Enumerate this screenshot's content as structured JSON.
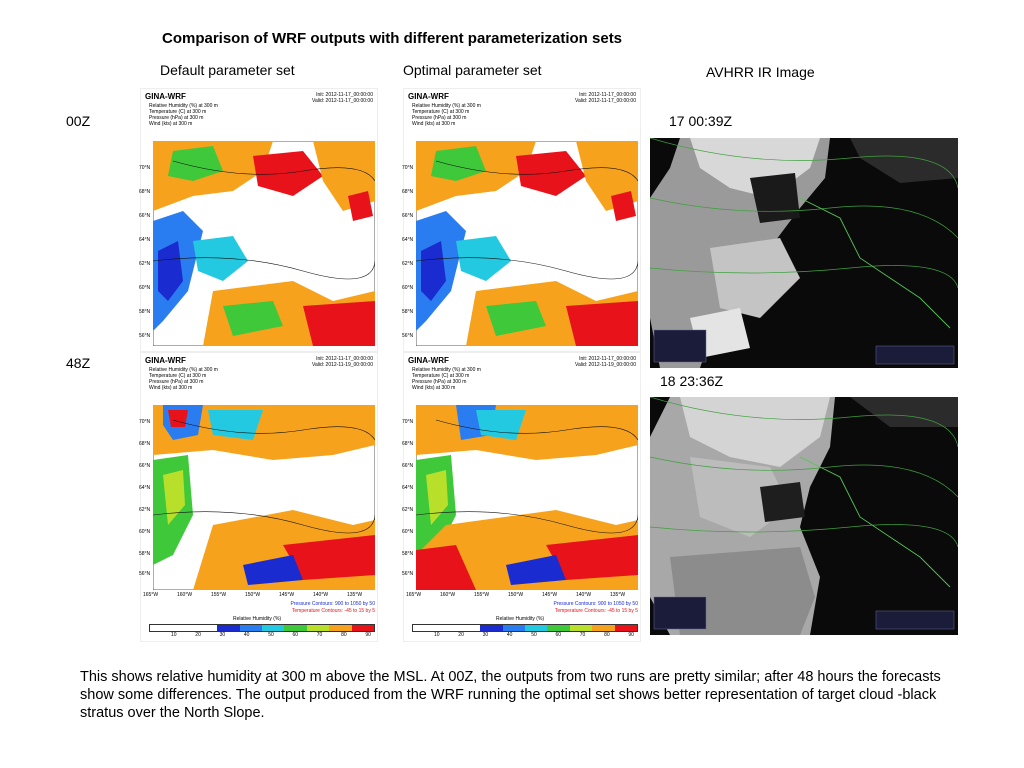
{
  "title": "Comparison of WRF outputs with different parameterization sets",
  "columns": {
    "default": "Default parameter set",
    "optimal": "Optimal parameter set",
    "avhrr": "AVHRR IR Image"
  },
  "rows": {
    "r1": "00Z",
    "r2": "48Z"
  },
  "times": {
    "t1": "17 00:39Z",
    "t2": "18 23:36Z"
  },
  "panel_common": {
    "brand": "GINA-WRF",
    "vars": [
      "Relative Humidity (%) at 300 m",
      "Temperature (C) at 300 m",
      "Pressure (hPa) at 300 m",
      "Wind (kts) at 300 m"
    ],
    "lat_labels": [
      "70°N",
      "68°N",
      "66°N",
      "64°N",
      "62°N",
      "60°N",
      "58°N",
      "56°N"
    ],
    "lon_labels": [
      "165°W",
      "160°W",
      "155°W",
      "150°W",
      "145°W",
      "140°W",
      "135°W"
    ],
    "pressure_contours": "Pressure Contours: 900 to 1050 by 50",
    "temperature_contours": "Temperature Contours: -45 to 15 by 5",
    "cbar_title": "Relative Humidity (%)",
    "cbar_ticks": [
      "10",
      "20",
      "30",
      "40",
      "50",
      "60",
      "70",
      "80",
      "90"
    ],
    "cbar_colors": [
      "#ffffff",
      "#ffffff",
      "#ffffff",
      "#1a2ccf",
      "#2a7df0",
      "#22c9e0",
      "#3ec83a",
      "#b8e02a",
      "#f7a21c",
      "#e8121a"
    ]
  },
  "panels": {
    "p00_def": {
      "init": "Init: 2012-11-17_00:00:00",
      "valid": "Valid: 2012-11-17_00:00:00"
    },
    "p00_opt": {
      "init": "Init: 2012-11-17_00:00:00",
      "valid": "Valid: 2012-11-17_00:00:00"
    },
    "p48_def": {
      "init": "Init: 2012-11-17_00:00:00",
      "valid": "Valid: 2012-11-19_00:00:00"
    },
    "p48_opt": {
      "init": "Init: 2012-11-17_00:00:00",
      "valid": "Valid: 2012-11-19_00:00:00"
    }
  },
  "caption": "This shows relative humidity  at 300 m above the MSL. At 00Z, the outputs from two runs are pretty similar; after 48 hours the forecasts show some differences. The  output produced from the WRF running the optimal set shows better representation of target cloud -black stratus over the North Slope."
}
